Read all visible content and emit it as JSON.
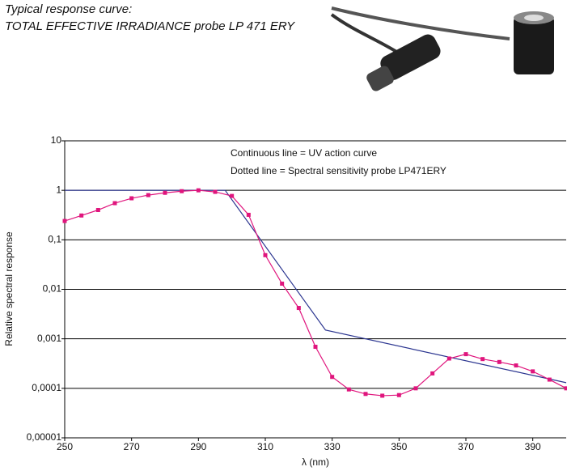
{
  "chart_data": {
    "type": "line",
    "title": "Typical response curve:",
    "subtitle": "TOTAL EFFECTIVE IRRADIANCE probe LP 471 ERY",
    "annotations": [
      "Continuous line = UV action curve",
      "Dotted line = Spectral sensitivity probe LP471ERY"
    ],
    "x_label": "λ (nm)",
    "y_label": "Relative spectral response",
    "xlim": [
      250,
      400
    ],
    "xticks": [
      250,
      270,
      290,
      310,
      330,
      350,
      370,
      390
    ],
    "ylim": [
      1e-05,
      10
    ],
    "y_scale": "log",
    "yticks": [
      {
        "value": 1e-05,
        "label": "0,00001"
      },
      {
        "value": 0.0001,
        "label": "0,0001"
      },
      {
        "value": 0.001,
        "label": "0,001"
      },
      {
        "value": 0.01,
        "label": "0,01"
      },
      {
        "value": 0.1,
        "label": "0,1"
      },
      1,
      10
    ],
    "grid": true,
    "series": [
      {
        "color": "#2b3590",
        "markers": false,
        "x": [
          250,
          298,
          328,
          400
        ],
        "values": [
          1,
          1,
          0.0015,
          0.00013
        ]
      },
      {
        "color": "#e0157d",
        "markers": true,
        "x": [
          250,
          255,
          260,
          265,
          270,
          275,
          280,
          285,
          290,
          295,
          300,
          305,
          310,
          315,
          320,
          325,
          330,
          335,
          340,
          345,
          350,
          355,
          360,
          365,
          370,
          375,
          380,
          385,
          390,
          395,
          400
        ],
        "values": [
          0.24,
          0.31,
          0.4,
          0.55,
          0.69,
          0.8,
          0.89,
          0.96,
          1,
          0.93,
          0.77,
          0.32,
          0.049,
          0.013,
          0.0042,
          0.00069,
          0.00017,
          9.5e-05,
          7.7e-05,
          7.1e-05,
          7.3e-05,
          0.0001,
          0.0002,
          0.0004,
          0.00049,
          0.00039,
          0.00034,
          0.00029,
          0.00022,
          0.00015,
          0.0001
        ]
      }
    ]
  }
}
